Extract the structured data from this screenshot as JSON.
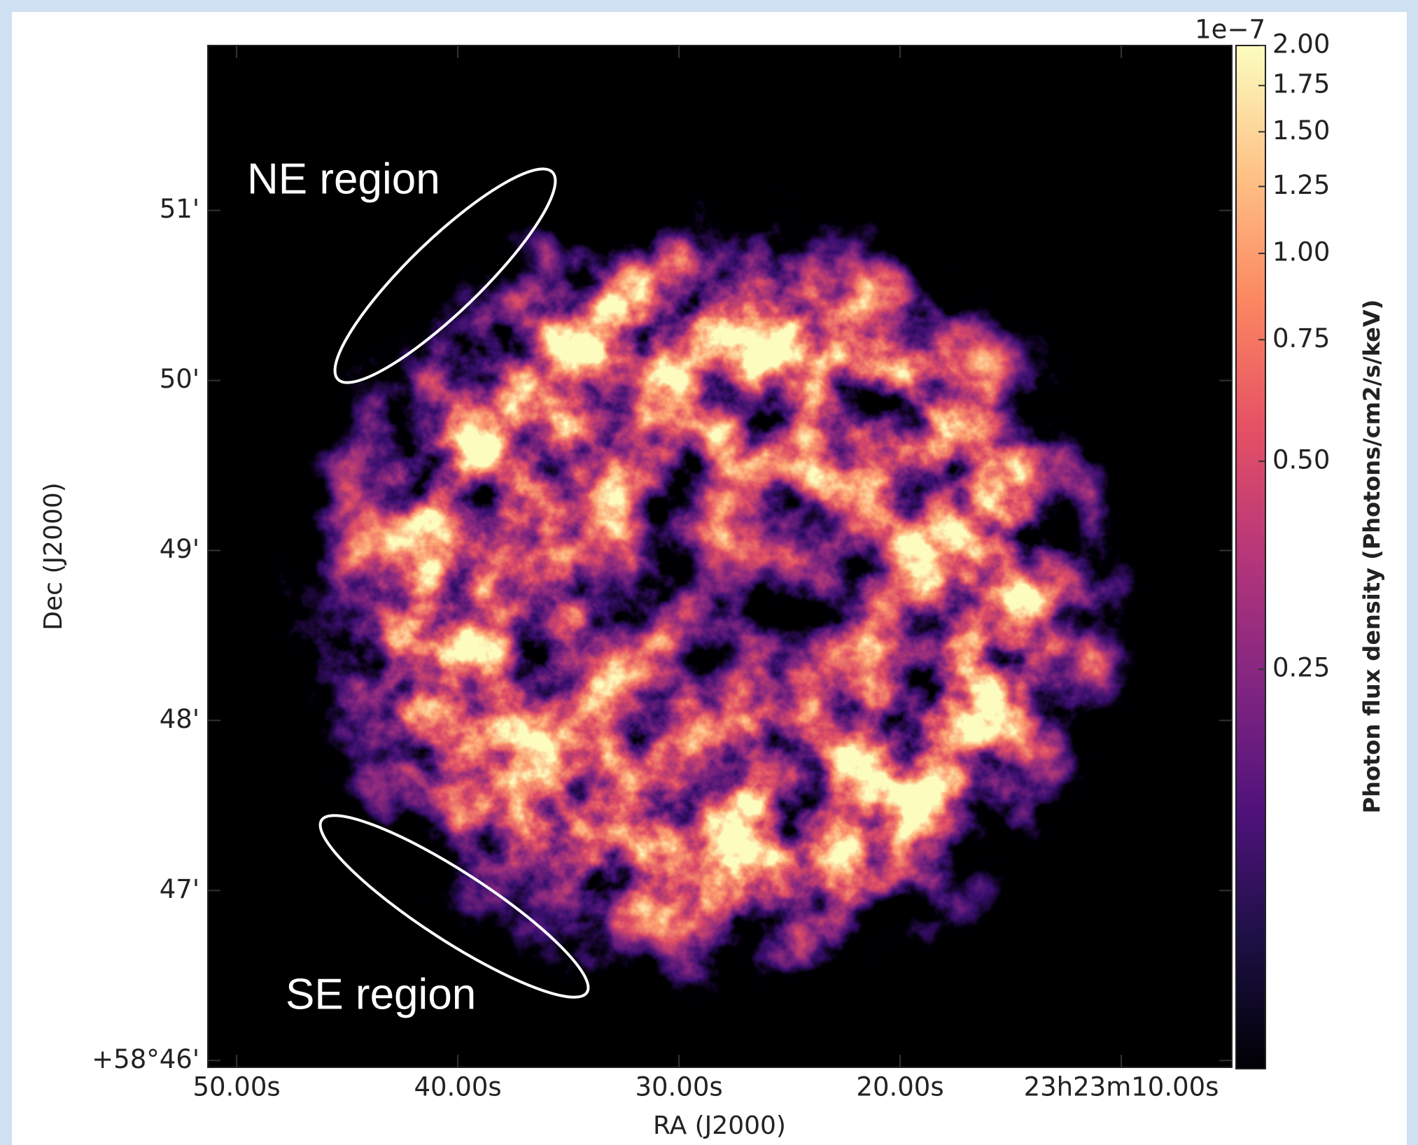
{
  "chart_data": {
    "type": "image",
    "x_label": "RA (J2000)",
    "y_label": "Dec (J2000)",
    "xlim": [
      51.3,
      5.0
    ],
    "xticks": [
      {
        "value": 50,
        "label": "50.00s"
      },
      {
        "value": 40,
        "label": "40.00s"
      },
      {
        "value": 30,
        "label": "30.00s"
      },
      {
        "value": 20,
        "label": "20.00s"
      },
      {
        "value": 10,
        "label": "23h23m10.00s"
      }
    ],
    "ylim": [
      45.96,
      51.97
    ],
    "yticks": [
      {
        "value": 46,
        "label": "+58°46'"
      },
      {
        "value": 47,
        "label": "47'"
      },
      {
        "value": 48,
        "label": "48'"
      },
      {
        "value": 49,
        "label": "49'"
      },
      {
        "value": 50,
        "label": "50'"
      },
      {
        "value": 51,
        "label": "51'"
      }
    ],
    "colormap": "magma",
    "colorbar": {
      "label": "Photon flux density (Photons/cm2/s/keV)",
      "offset_text": "1e−7",
      "scale": "log",
      "clim": [
        0.066,
        2.0
      ],
      "ticks": [
        {
          "value": 2.0,
          "label": "2.00"
        },
        {
          "value": 1.75,
          "label": "1.75"
        },
        {
          "value": 1.5,
          "label": "1.50"
        },
        {
          "value": 1.25,
          "label": "1.25"
        },
        {
          "value": 1.0,
          "label": "1.00"
        },
        0.75,
        {
          "value": 0.5,
          "label": "0.50"
        },
        0.25
      ]
    },
    "annotations": [
      "NE region",
      "SE region"
    ]
  }
}
